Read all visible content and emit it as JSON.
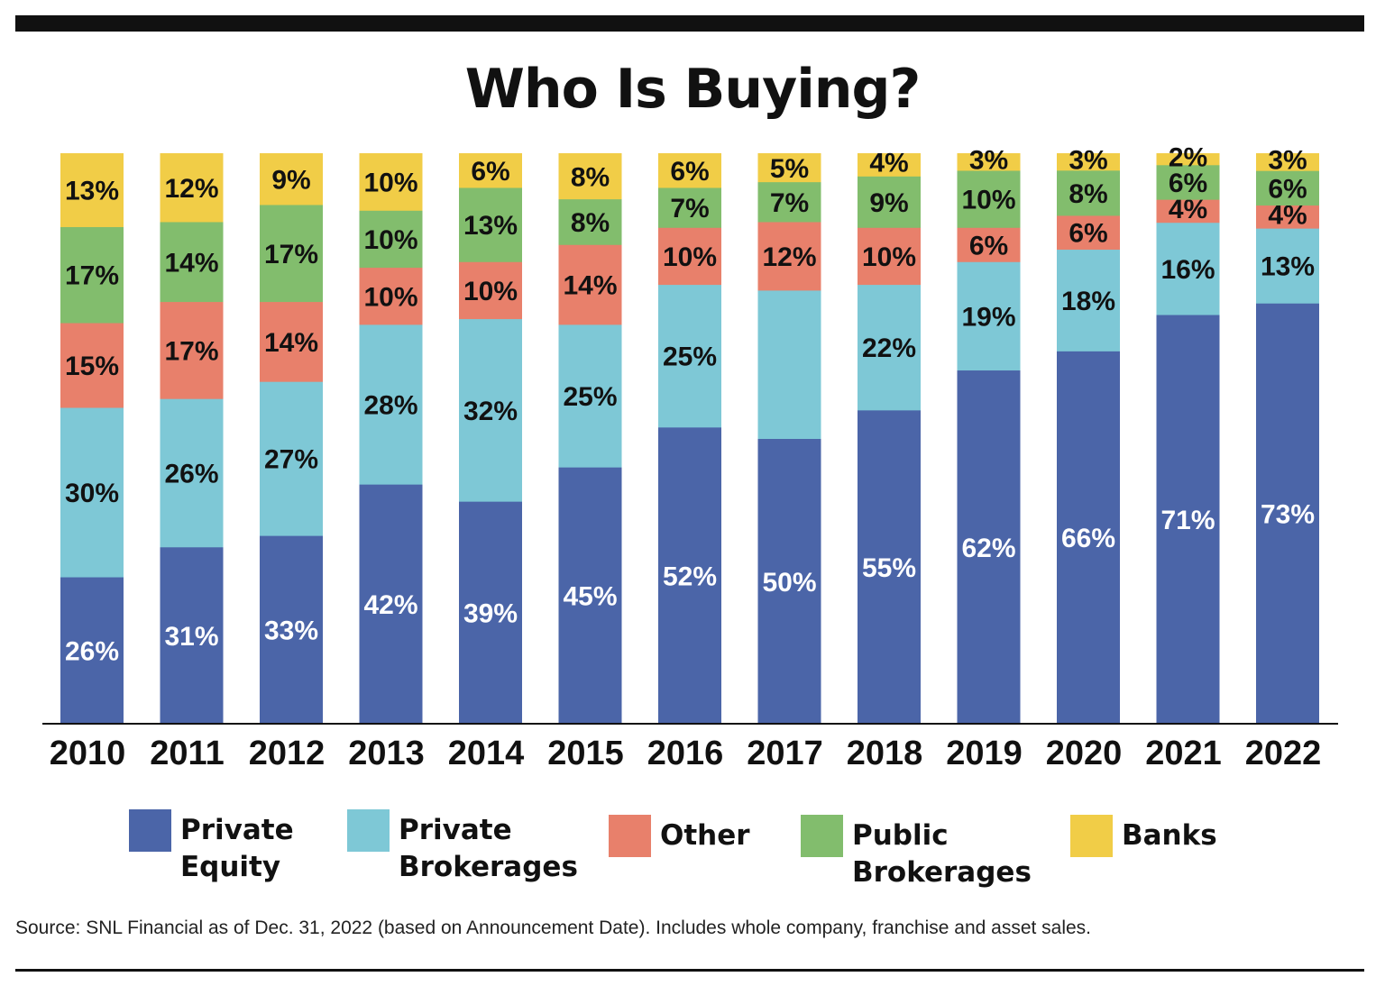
{
  "chart_data": {
    "type": "bar",
    "stacked": true,
    "title": "Who Is Buying?",
    "categories": [
      "2010",
      "2011",
      "2012",
      "2013",
      "2014",
      "2015",
      "2016",
      "2017",
      "2018",
      "2019",
      "2020",
      "2021",
      "2022"
    ],
    "ylim": [
      0,
      100
    ],
    "series": [
      {
        "name": "Private Equity",
        "legend": "Private\nEquity",
        "color": "#4b65a8",
        "label_color": "#ffffff",
        "values": [
          26,
          31,
          33,
          42,
          39,
          45,
          52,
          50,
          55,
          62,
          66,
          71,
          73
        ],
        "labels": [
          "26%",
          "31%",
          "33%",
          "42%",
          "39%",
          "45%",
          "52%",
          "50%",
          "55%",
          "62%",
          "66%",
          "71%",
          "73%"
        ]
      },
      {
        "name": "Private Brokerages",
        "legend": "Private\nBrokerages",
        "color": "#7ec8d6",
        "label_color": "#111111",
        "values": [
          30,
          26,
          27,
          28,
          32,
          25,
          25,
          26,
          22,
          19,
          18,
          16,
          13
        ],
        "labels": [
          "30%",
          "26%",
          "27%",
          "28%",
          "32%",
          "25%",
          "25%",
          "",
          "22%",
          "19%",
          "18%",
          "16%",
          "13%"
        ]
      },
      {
        "name": "Other",
        "legend": "Other",
        "color": "#e8806b",
        "label_color": "#111111",
        "values": [
          15,
          17,
          14,
          10,
          10,
          14,
          10,
          12,
          10,
          6,
          6,
          4,
          4
        ],
        "labels": [
          "15%",
          "17%",
          "14%",
          "10%",
          "10%",
          "14%",
          "10%",
          "12%",
          "10%",
          "6%",
          "6%",
          "4%",
          "4%"
        ]
      },
      {
        "name": "Public Brokerages",
        "legend": "Public\nBrokerages",
        "color": "#82bd6d",
        "label_color": "#111111",
        "values": [
          17,
          14,
          17,
          10,
          13,
          8,
          7,
          7,
          9,
          10,
          8,
          6,
          6
        ],
        "labels": [
          "17%",
          "14%",
          "17%",
          "10%",
          "13%",
          "8%",
          "7%",
          "7%",
          "9%",
          "10%",
          "8%",
          "6%",
          "6%"
        ]
      },
      {
        "name": "Banks",
        "legend": "Banks",
        "color": "#f1cd47",
        "label_color": "#111111",
        "values": [
          13,
          12,
          9,
          10,
          6,
          8,
          6,
          5,
          4,
          3,
          3,
          2,
          3
        ],
        "labels": [
          "13%",
          "12%",
          "9%",
          "10%",
          "6%",
          "8%",
          "6%",
          "5%",
          "4%",
          "3%",
          "3%",
          "2%",
          "3%"
        ]
      }
    ],
    "legend_position": "bottom"
  },
  "source": "Source: SNL Financial as of Dec. 31, 2022 (based on Announcement Date).  Includes whole company, franchise and asset sales."
}
